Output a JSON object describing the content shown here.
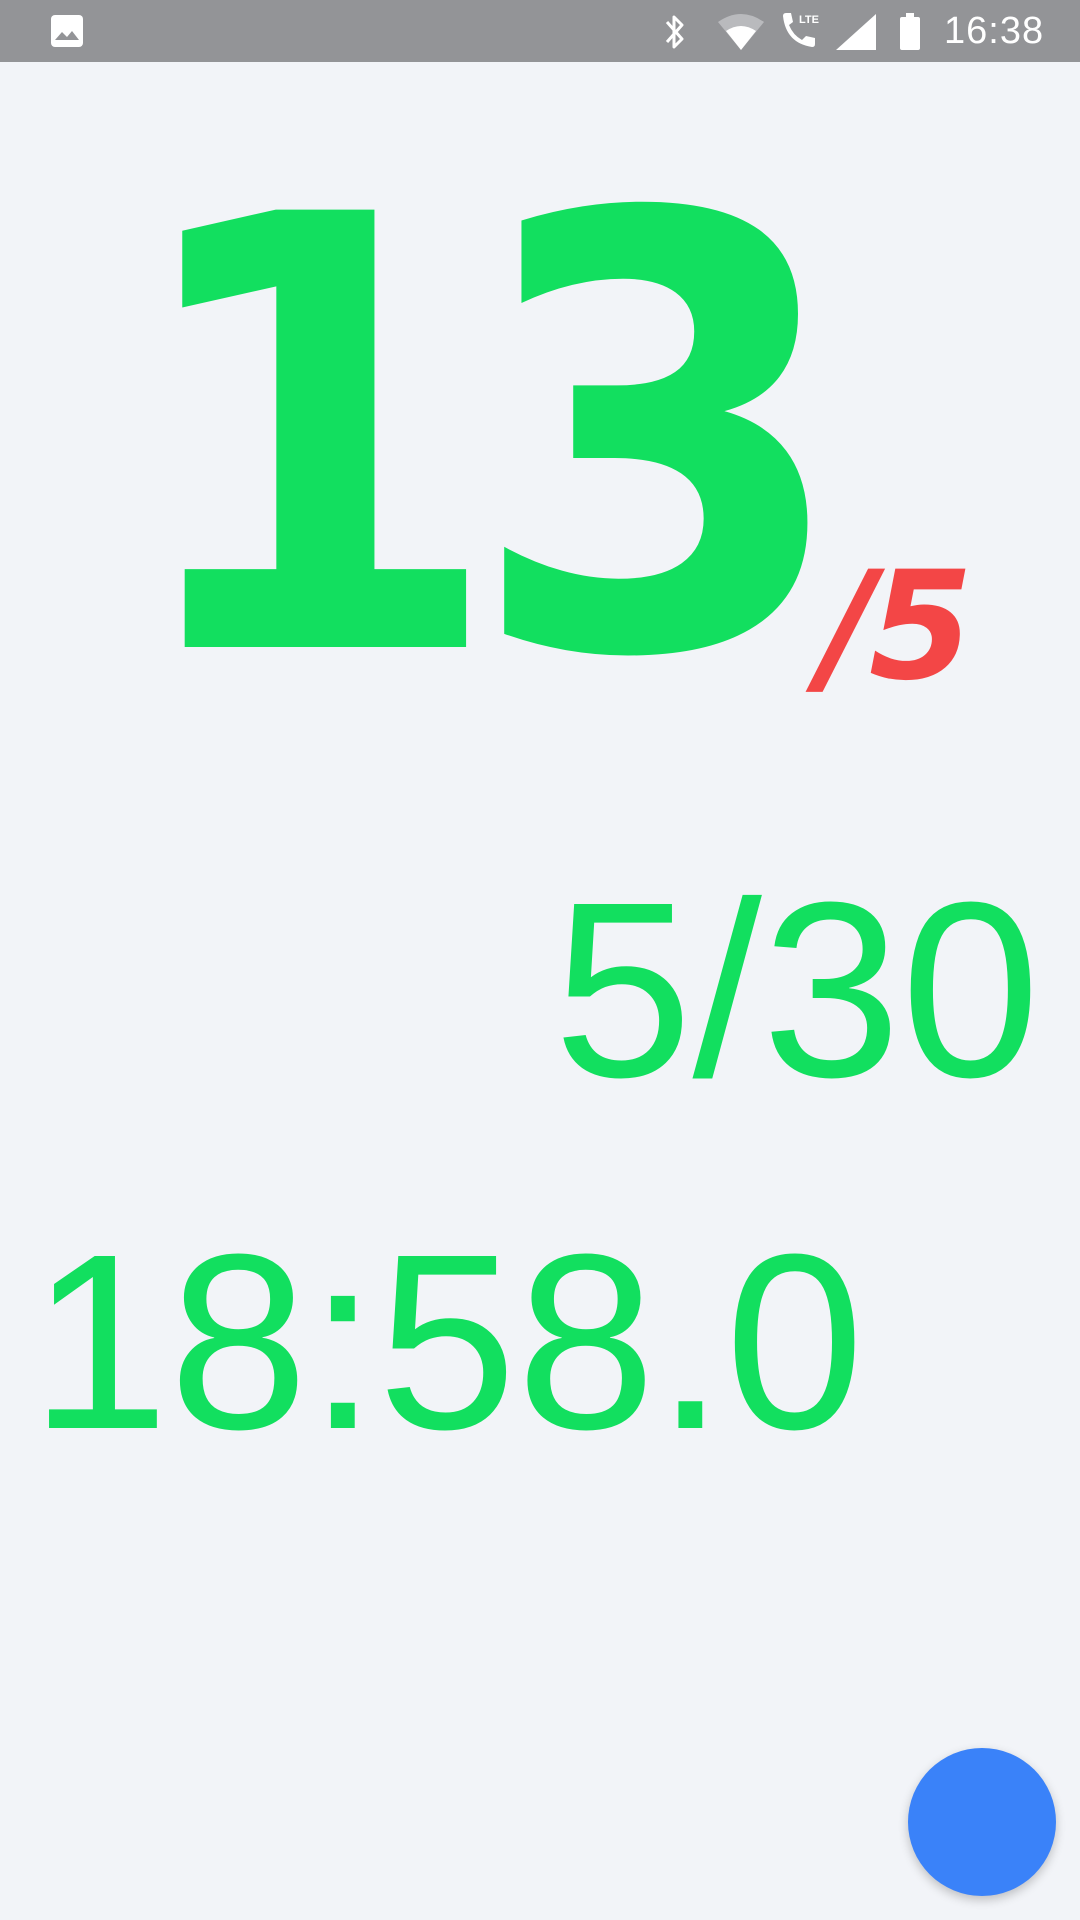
{
  "status_bar": {
    "time": "16:38",
    "icons": [
      "gallery-icon",
      "bluetooth-icon",
      "wifi-icon",
      "lte-call-icon",
      "signal-icon",
      "battery-icon"
    ]
  },
  "counter": {
    "value": "13",
    "suffix": "/5",
    "color": "#12df5f",
    "suffix_color": "#f34646"
  },
  "progress": {
    "text": "5/30"
  },
  "timer": {
    "text": "18:58.0"
  },
  "fab": {
    "color": "#3a82f9"
  }
}
